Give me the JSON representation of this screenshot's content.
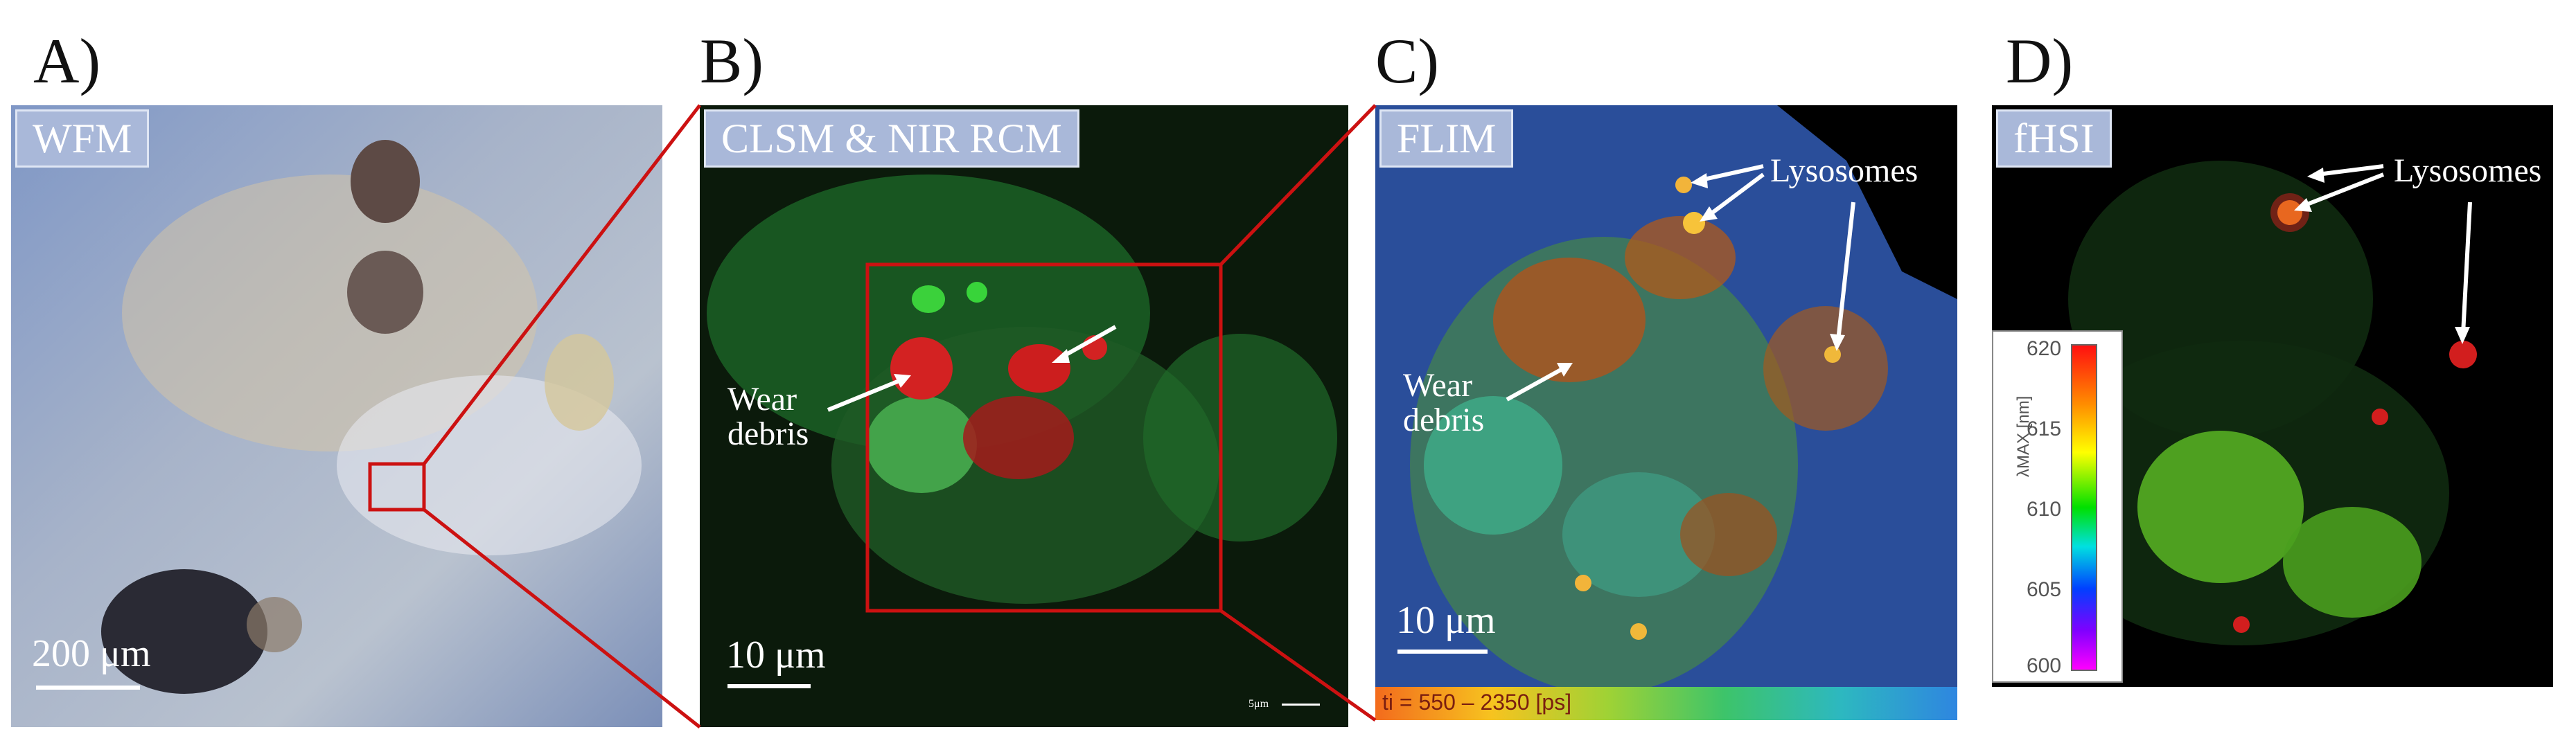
{
  "panels": {
    "a": {
      "letter": "A)",
      "tag": "WFM",
      "scale": "200 μm"
    },
    "b": {
      "letter": "B)",
      "tag": "CLSM & NIR RCM",
      "scale": "10 μm",
      "small_scale": "5μm",
      "ann_wear": "Wear\ndebris"
    },
    "c": {
      "letter": "C)",
      "tag": "FLIM",
      "scale": "10 μm",
      "ann_wear": "Wear\ndebris",
      "ann_lyso": "Lysosomes",
      "colorbar_label": "ti = 550 – 2350 [ps]"
    },
    "d": {
      "letter": "D)",
      "tag": "fHSI",
      "ann_lyso": "Lysosomes",
      "colorbar_title": "λMAX [nm]",
      "colorbar_ticks": [
        "620",
        "615",
        "610",
        "605",
        "600"
      ]
    }
  },
  "colors": {
    "highlight": "#cc1111",
    "tag_bg": "#a9b8d9"
  }
}
